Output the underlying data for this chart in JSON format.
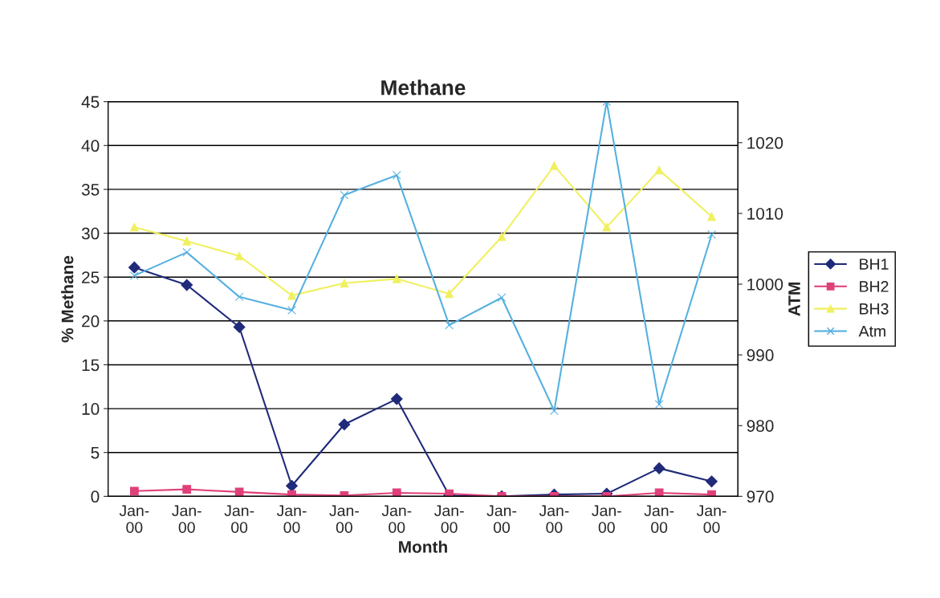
{
  "chart_data": {
    "type": "line",
    "title": "Methane",
    "xlabel": "Month",
    "ylabel": "% Methane",
    "y2label": "ATM",
    "categories": [
      "Jan-\n00",
      "Jan-\n00",
      "Jan-\n00",
      "Jan-\n00",
      "Jan-\n00",
      "Jan-\n00",
      "Jan-\n00",
      "Jan-\n00",
      "Jan-\n00",
      "Jan-\n00",
      "Jan-\n00",
      "Jan-\n00"
    ],
    "series": [
      {
        "name": "BH1",
        "color": "#1f2a7a",
        "marker": "diamond",
        "values": [
          26.1,
          24.1,
          19.3,
          1.2,
          8.2,
          11.1,
          0.1,
          0,
          0.2,
          0.3,
          3.2,
          1.7
        ]
      },
      {
        "name": "BH2",
        "color": "#e0407a",
        "marker": "square",
        "values": [
          0.6,
          0.8,
          0.5,
          0.2,
          0.1,
          0.4,
          0.3,
          0,
          0,
          0,
          0.4,
          0.2
        ]
      },
      {
        "name": "BH3",
        "color": "#f0f060",
        "marker": "triangle",
        "values": [
          30.7,
          29.1,
          27.4,
          22.9,
          24.3,
          24.8,
          23.1,
          29.6,
          37.7,
          30.7,
          37.2,
          31.9
        ]
      },
      {
        "name": "Atm",
        "color": "#55b0e0",
        "marker": "cross",
        "axis": "y2",
        "values": [
          1001.2,
          1004.5,
          998.2,
          996.3,
          1012.6,
          1015.4,
          994.2,
          998.1,
          982.1,
          1025.8,
          983,
          1007
        ]
      }
    ],
    "ylim": [
      0,
      45
    ],
    "yticks": [
      0,
      5,
      10,
      15,
      20,
      25,
      30,
      35,
      40,
      45
    ],
    "y2lim": [
      970,
      1025.8
    ],
    "y2ticks": [
      970,
      980,
      990,
      1000,
      1010,
      1020
    ],
    "grid": "y",
    "legend": "right"
  }
}
